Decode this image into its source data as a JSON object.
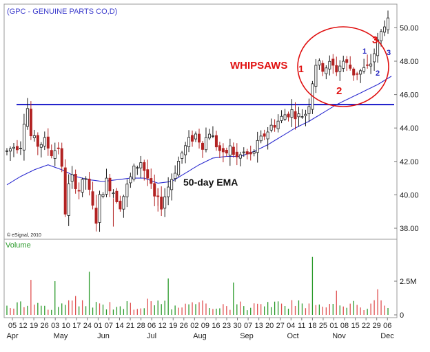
{
  "title": "(GPC - GENUINE PARTS CO,D)",
  "copyright": "© eSignal, 2010",
  "volume_label": "Volume",
  "annotations": {
    "whipsaws": "WHIPSAWS",
    "ema": "50-day EMA",
    "red_1": "1",
    "red_2": "2",
    "red_3": "3",
    "blue_1": "1",
    "blue_2": "2",
    "blue_3": "3"
  },
  "colors": {
    "up": "#1a1a1a",
    "down": "#b22222",
    "ema": "#2b2bd0",
    "resistance": "#1515c8",
    "volume_up": "#2a9a2a",
    "volume_down": "#e05050",
    "annotation_red": "#e01010",
    "annotation_blue": "#2020c0"
  },
  "chart_data": [
    {
      "type": "candlestick",
      "title": "(GPC - GENUINE PARTS CO,D)",
      "y_ticks": [
        "38.00",
        "40.00",
        "42.00",
        "44.00",
        "46.00",
        "48.00",
        "50.00"
      ],
      "ylim": [
        37.3,
        51.0
      ],
      "x_ticks": [
        "05",
        "12",
        "19",
        "26",
        "03",
        "10",
        "17",
        "24",
        "01",
        "07",
        "14",
        "21",
        "28",
        "06",
        "12",
        "19",
        "26",
        "02",
        "09",
        "16",
        "23",
        "30",
        "07",
        "13",
        "20",
        "27",
        "04",
        "11",
        "18",
        "25",
        "01",
        "08",
        "15",
        "22",
        "29",
        "06"
      ],
      "months": [
        "Apr",
        "May",
        "Jun",
        "Jul",
        "Aug",
        "Sep",
        "Oct",
        "Nov",
        "Dec"
      ],
      "resistance_level": 45.4,
      "ema_series": [
        {
          "t": 0,
          "v": 40.6
        },
        {
          "t": 4,
          "v": 41.1
        },
        {
          "t": 8,
          "v": 41.5
        },
        {
          "t": 12,
          "v": 41.8
        },
        {
          "t": 16,
          "v": 41.5
        },
        {
          "t": 20,
          "v": 41.1
        },
        {
          "t": 24,
          "v": 40.9
        },
        {
          "t": 28,
          "v": 40.8
        },
        {
          "t": 32,
          "v": 40.9
        },
        {
          "t": 36,
          "v": 41.0
        },
        {
          "t": 40,
          "v": 41.0
        },
        {
          "t": 44,
          "v": 40.7
        },
        {
          "t": 48,
          "v": 40.8
        },
        {
          "t": 52,
          "v": 41.3
        },
        {
          "t": 56,
          "v": 41.8
        },
        {
          "t": 60,
          "v": 42.2
        },
        {
          "t": 64,
          "v": 42.3
        },
        {
          "t": 68,
          "v": 42.3
        },
        {
          "t": 72,
          "v": 42.6
        },
        {
          "t": 76,
          "v": 43.0
        },
        {
          "t": 80,
          "v": 43.5
        },
        {
          "t": 84,
          "v": 44.0
        },
        {
          "t": 88,
          "v": 44.4
        },
        {
          "t": 92,
          "v": 44.9
        },
        {
          "t": 96,
          "v": 45.4
        },
        {
          "t": 100,
          "v": 45.8
        },
        {
          "t": 104,
          "v": 46.2
        },
        {
          "t": 108,
          "v": 46.6
        },
        {
          "t": 112,
          "v": 47.1
        }
      ],
      "price_series": [
        {
          "t": 0,
          "v": 42.6
        },
        {
          "t": 2,
          "v": 42.9
        },
        {
          "t": 4,
          "v": 43.0
        },
        {
          "t": 5,
          "v": 44.5
        },
        {
          "t": 6,
          "v": 45.2
        },
        {
          "t": 7,
          "v": 43.5
        },
        {
          "t": 9,
          "v": 43.0
        },
        {
          "t": 11,
          "v": 43.2
        },
        {
          "t": 13,
          "v": 42.5
        },
        {
          "t": 15,
          "v": 42.9
        },
        {
          "t": 16,
          "v": 41.5
        },
        {
          "t": 17,
          "v": 39.0
        },
        {
          "t": 18,
          "v": 40.5
        },
        {
          "t": 19,
          "v": 41.0
        },
        {
          "t": 21,
          "v": 40.3
        },
        {
          "t": 23,
          "v": 41.0
        },
        {
          "t": 25,
          "v": 39.2
        },
        {
          "t": 26,
          "v": 38.5
        },
        {
          "t": 27,
          "v": 39.8
        },
        {
          "t": 29,
          "v": 40.8
        },
        {
          "t": 31,
          "v": 40.2
        },
        {
          "t": 33,
          "v": 39.4
        },
        {
          "t": 35,
          "v": 40.5
        },
        {
          "t": 37,
          "v": 41.5
        },
        {
          "t": 39,
          "v": 42.0
        },
        {
          "t": 41,
          "v": 41.0
        },
        {
          "t": 43,
          "v": 39.8
        },
        {
          "t": 45,
          "v": 39.4
        },
        {
          "t": 47,
          "v": 40.5
        },
        {
          "t": 49,
          "v": 41.5
        },
        {
          "t": 51,
          "v": 42.5
        },
        {
          "t": 53,
          "v": 43.2
        },
        {
          "t": 55,
          "v": 43.6
        },
        {
          "t": 57,
          "v": 43.0
        },
        {
          "t": 59,
          "v": 43.8
        },
        {
          "t": 61,
          "v": 43.0
        },
        {
          "t": 63,
          "v": 42.3
        },
        {
          "t": 65,
          "v": 42.8
        },
        {
          "t": 67,
          "v": 42.2
        },
        {
          "t": 69,
          "v": 42.5
        },
        {
          "t": 71,
          "v": 42.3
        },
        {
          "t": 73,
          "v": 43.0
        },
        {
          "t": 75,
          "v": 43.6
        },
        {
          "t": 77,
          "v": 44.1
        },
        {
          "t": 79,
          "v": 44.4
        },
        {
          "t": 81,
          "v": 44.8
        },
        {
          "t": 83,
          "v": 45.0
        },
        {
          "t": 85,
          "v": 44.7
        },
        {
          "t": 87,
          "v": 44.9
        },
        {
          "t": 88,
          "v": 45.5
        },
        {
          "t": 89,
          "v": 46.8
        },
        {
          "t": 90,
          "v": 47.9
        },
        {
          "t": 92,
          "v": 47.6
        },
        {
          "t": 94,
          "v": 47.8
        },
        {
          "t": 96,
          "v": 47.5
        },
        {
          "t": 98,
          "v": 48.0
        },
        {
          "t": 100,
          "v": 47.6
        },
        {
          "t": 101,
          "v": 47.3
        },
        {
          "t": 103,
          "v": 47.4
        },
        {
          "t": 105,
          "v": 47.6
        },
        {
          "t": 106,
          "v": 47.9
        },
        {
          "t": 107,
          "v": 48.5
        },
        {
          "t": 108,
          "v": 49.1
        },
        {
          "t": 109,
          "v": 49.7
        },
        {
          "t": 110,
          "v": 50.3
        }
      ],
      "volume_axis": [
        "2.5M",
        "0"
      ],
      "volume_spikes": [
        {
          "t": 7,
          "v": 2.6
        },
        {
          "t": 14,
          "v": 2.5
        },
        {
          "t": 20,
          "v": 1.4
        },
        {
          "t": 24,
          "v": 3.2
        },
        {
          "t": 41,
          "v": 1.2
        },
        {
          "t": 47,
          "v": 2.7
        },
        {
          "t": 66,
          "v": 2.4
        },
        {
          "t": 89,
          "v": 4.3
        },
        {
          "t": 96,
          "v": 1.8
        },
        {
          "t": 108,
          "v": 1.9
        }
      ]
    }
  ]
}
